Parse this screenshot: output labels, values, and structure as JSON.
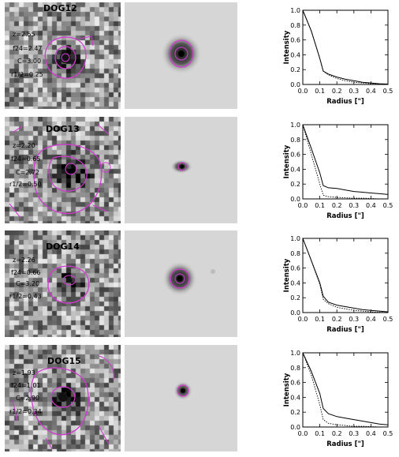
{
  "panels": [
    {
      "id": "DOG12",
      "params": [
        "z=2.55",
        "f24=2.47",
        "C=3.00",
        "r1/2=0.25"
      ],
      "profile": {
        "radius": [
          0.0,
          0.05,
          0.1,
          0.12,
          0.15,
          0.2,
          0.25,
          0.3,
          0.35,
          0.4,
          0.45,
          0.5
        ],
        "observed": [
          1.0,
          0.72,
          0.35,
          0.18,
          0.14,
          0.1,
          0.07,
          0.05,
          0.03,
          0.02,
          0.01,
          0.005
        ],
        "model": [
          1.0,
          0.72,
          0.35,
          0.18,
          0.13,
          0.08,
          0.05,
          0.03,
          0.02,
          0.01,
          0.005,
          0.0
        ]
      }
    },
    {
      "id": "DOG13",
      "params": [
        "z=2.20",
        "f24=0.65",
        "C=2.72",
        "r1/2=0.50"
      ],
      "profile": {
        "radius": [
          0.0,
          0.05,
          0.1,
          0.12,
          0.15,
          0.2,
          0.25,
          0.3,
          0.35,
          0.4,
          0.45,
          0.5
        ],
        "observed": [
          1.0,
          0.68,
          0.35,
          0.18,
          0.15,
          0.14,
          0.12,
          0.1,
          0.09,
          0.08,
          0.07,
          0.06
        ],
        "model": [
          1.0,
          0.6,
          0.2,
          0.05,
          0.03,
          0.02,
          0.015,
          0.01,
          0.01,
          0.005,
          0.0,
          0.0
        ]
      }
    },
    {
      "id": "DOG14",
      "params": [
        "z=2.26",
        "f24=0.66",
        "C=3.20",
        "r1/2=0.43"
      ],
      "profile": {
        "radius": [
          0.0,
          0.05,
          0.1,
          0.12,
          0.15,
          0.2,
          0.25,
          0.3,
          0.35,
          0.4,
          0.45,
          0.5
        ],
        "observed": [
          1.0,
          0.7,
          0.4,
          0.22,
          0.14,
          0.1,
          0.08,
          0.06,
          0.04,
          0.03,
          0.02,
          0.01
        ],
        "model": [
          1.0,
          0.7,
          0.38,
          0.18,
          0.12,
          0.07,
          0.05,
          0.03,
          0.02,
          0.01,
          0.005,
          0.0
        ]
      }
    },
    {
      "id": "DOG15",
      "params": [
        "z=1.93",
        "f24=1.01",
        "C=2.90",
        "r1/2=0.34"
      ],
      "profile": {
        "radius": [
          0.0,
          0.05,
          0.1,
          0.12,
          0.15,
          0.2,
          0.25,
          0.3,
          0.35,
          0.4,
          0.45,
          0.5
        ],
        "observed": [
          1.0,
          0.75,
          0.45,
          0.25,
          0.18,
          0.14,
          0.12,
          0.1,
          0.08,
          0.06,
          0.04,
          0.03
        ],
        "model": [
          1.0,
          0.7,
          0.3,
          0.1,
          0.05,
          0.03,
          0.02,
          0.01,
          0.01,
          0.005,
          0.0,
          0.0
        ]
      }
    }
  ],
  "axes": {
    "xlabel": "Radius [\"]",
    "ylabel": "Intensity",
    "xticks": [
      "0.0",
      "0.1",
      "0.2",
      "0.3",
      "0.4",
      "0.5"
    ],
    "yticks": [
      "0.0",
      "0.2",
      "0.4",
      "0.6",
      "0.8",
      "1.0"
    ],
    "xlim": [
      0.0,
      0.5
    ],
    "ylim": [
      0.0,
      1.0
    ]
  },
  "colors": {
    "contour": "#d23ad2",
    "line": "#000000",
    "model_bg": "#d6d6d6"
  },
  "chart_data": [
    {
      "type": "line",
      "x": [
        0.0,
        0.05,
        0.1,
        0.12,
        0.15,
        0.2,
        0.25,
        0.3,
        0.35,
        0.4,
        0.45,
        0.5
      ],
      "series": [
        {
          "values": [
            1.0,
            0.72,
            0.35,
            0.18,
            0.14,
            0.1,
            0.07,
            0.05,
            0.03,
            0.02,
            0.01,
            0.005
          ]
        },
        {
          "values": [
            1.0,
            0.72,
            0.35,
            0.18,
            0.13,
            0.08,
            0.05,
            0.03,
            0.02,
            0.01,
            0.005,
            0.0
          ]
        }
      ],
      "xlabel": "Radius [\"]",
      "ylabel": "Intensity",
      "xlim": [
        0,
        0.5
      ],
      "ylim": [
        0,
        1
      ]
    },
    {
      "type": "line",
      "x": [
        0.0,
        0.05,
        0.1,
        0.12,
        0.15,
        0.2,
        0.25,
        0.3,
        0.35,
        0.4,
        0.45,
        0.5
      ],
      "series": [
        {
          "values": [
            1.0,
            0.68,
            0.35,
            0.18,
            0.15,
            0.14,
            0.12,
            0.1,
            0.09,
            0.08,
            0.07,
            0.06
          ]
        },
        {
          "values": [
            1.0,
            0.6,
            0.2,
            0.05,
            0.03,
            0.02,
            0.015,
            0.01,
            0.01,
            0.005,
            0.0,
            0.0
          ]
        }
      ],
      "xlabel": "Radius [\"]",
      "ylabel": "Intensity",
      "xlim": [
        0,
        0.5
      ],
      "ylim": [
        0,
        1
      ]
    },
    {
      "type": "line",
      "x": [
        0.0,
        0.05,
        0.1,
        0.12,
        0.15,
        0.2,
        0.25,
        0.3,
        0.35,
        0.4,
        0.45,
        0.5
      ],
      "series": [
        {
          "values": [
            1.0,
            0.7,
            0.4,
            0.22,
            0.14,
            0.1,
            0.08,
            0.06,
            0.04,
            0.03,
            0.02,
            0.01
          ]
        },
        {
          "values": [
            1.0,
            0.7,
            0.38,
            0.18,
            0.12,
            0.07,
            0.05,
            0.03,
            0.02,
            0.01,
            0.005,
            0.0
          ]
        }
      ],
      "xlabel": "Radius [\"]",
      "ylabel": "Intensity",
      "xlim": [
        0,
        0.5
      ],
      "ylim": [
        0,
        1
      ]
    },
    {
      "type": "line",
      "x": [
        0.0,
        0.05,
        0.1,
        0.12,
        0.15,
        0.2,
        0.25,
        0.3,
        0.35,
        0.4,
        0.45,
        0.5
      ],
      "series": [
        {
          "values": [
            1.0,
            0.75,
            0.45,
            0.25,
            0.18,
            0.14,
            0.12,
            0.1,
            0.08,
            0.06,
            0.04,
            0.03
          ]
        },
        {
          "values": [
            1.0,
            0.7,
            0.3,
            0.1,
            0.05,
            0.03,
            0.02,
            0.01,
            0.01,
            0.005,
            0.0,
            0.0
          ]
        }
      ],
      "xlabel": "Radius [\"]",
      "ylabel": "Intensity",
      "xlim": [
        0,
        0.5
      ],
      "ylim": [
        0,
        1
      ]
    }
  ]
}
